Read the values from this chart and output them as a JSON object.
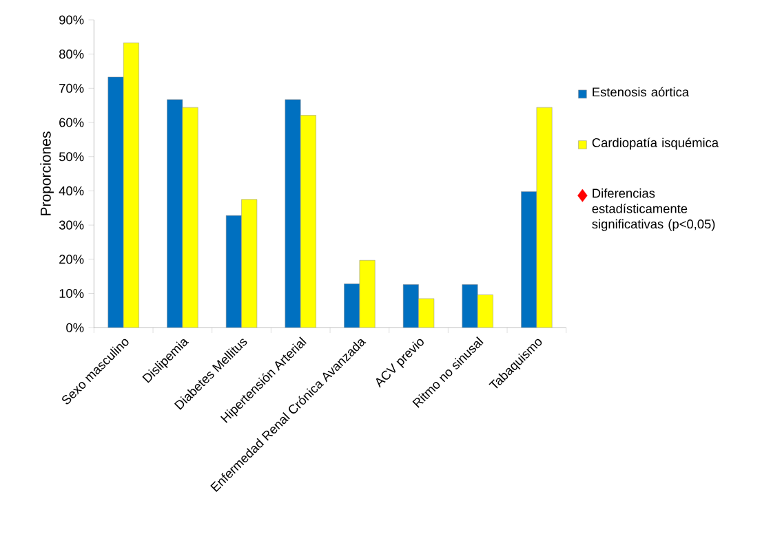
{
  "chart_data": {
    "type": "bar",
    "ylabel": "Proporciones",
    "categories": [
      "Sexo masculino",
      "Dislipemia",
      "Diabetes Mellitus",
      "Hipertensión Arterial",
      "Enfermedad Renal Crónica Avanzada",
      "ACV previo",
      "Ritmo no sinusal",
      "Tabaquismo"
    ],
    "series": [
      {
        "name": "Estenosis aórtica",
        "color": "#0070c0",
        "values": [
          73.3,
          66.7,
          32.8,
          66.7,
          12.8,
          12.6,
          12.6,
          39.8
        ]
      },
      {
        "name": "Cardiopatía isquémica",
        "color": "#ffff00",
        "values": [
          83.3,
          64.4,
          37.5,
          62.1,
          19.7,
          8.5,
          9.6,
          64.4
        ]
      },
      {
        "name": "Diferencias estadísticamente significativas (p<0,05)",
        "type": "scatter",
        "marker": "diamond",
        "color": "#ff0000",
        "values": [
          null,
          null,
          null,
          null,
          null,
          null,
          null,
          null
        ]
      }
    ],
    "ylim": [
      0,
      90
    ],
    "yticks": [
      {
        "value": 0,
        "label": "0%"
      },
      {
        "value": 10,
        "label": "10%"
      },
      {
        "value": 20,
        "label": "20%"
      },
      {
        "value": 30,
        "label": "30%"
      },
      {
        "value": 40,
        "label": "40%"
      },
      {
        "value": 50,
        "label": "50%"
      },
      {
        "value": 60,
        "label": "60%"
      },
      {
        "value": 70,
        "label": "70%"
      },
      {
        "value": 80,
        "label": "80%"
      },
      {
        "value": 90,
        "label": "90%"
      }
    ],
    "legend": "right"
  }
}
